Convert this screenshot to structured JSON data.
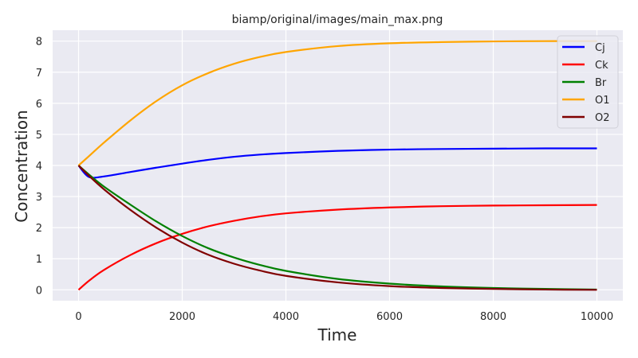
{
  "chart_data": {
    "type": "line",
    "title": "biamp/original/images/main_max.png",
    "xlabel": "Time",
    "ylabel": "Concentration",
    "xlim": [
      -500,
      10500
    ],
    "ylim": [
      -0.35,
      8.35
    ],
    "grid": true,
    "legend_position": "top-right",
    "x_ticks": [
      "0",
      "2000",
      "4000",
      "6000",
      "8000",
      "10000"
    ],
    "y_ticks": [
      "0",
      "1",
      "2",
      "3",
      "4",
      "5",
      "6",
      "7",
      "8"
    ],
    "x": [
      0,
      200,
      500,
      1000,
      1500,
      2000,
      2500,
      3000,
      3500,
      4000,
      5000,
      6000,
      7000,
      8000,
      9000,
      10000
    ],
    "series": [
      {
        "name": "Cj",
        "color": "#0000ff",
        "values": [
          4.0,
          3.63,
          3.65,
          3.79,
          3.93,
          4.06,
          4.18,
          4.28,
          4.35,
          4.4,
          4.47,
          4.51,
          4.53,
          4.54,
          4.55,
          4.55
        ]
      },
      {
        "name": "Ck",
        "color": "#ff0000",
        "values": [
          0.0,
          0.29,
          0.65,
          1.12,
          1.5,
          1.8,
          2.04,
          2.22,
          2.36,
          2.46,
          2.58,
          2.65,
          2.69,
          2.71,
          2.72,
          2.73
        ]
      },
      {
        "name": "Br",
        "color": "#008000",
        "values": [
          4.0,
          3.71,
          3.31,
          2.74,
          2.2,
          1.73,
          1.34,
          1.04,
          0.8,
          0.61,
          0.35,
          0.2,
          0.11,
          0.06,
          0.03,
          0.01
        ]
      },
      {
        "name": "O1",
        "color": "#ffa500",
        "values": [
          4.0,
          4.3,
          4.75,
          5.45,
          6.07,
          6.58,
          6.97,
          7.27,
          7.49,
          7.65,
          7.84,
          7.93,
          7.97,
          7.99,
          8.0,
          8.0
        ]
      },
      {
        "name": "O2",
        "color": "#800000",
        "values": [
          4.0,
          3.67,
          3.22,
          2.57,
          2.0,
          1.52,
          1.13,
          0.84,
          0.62,
          0.45,
          0.24,
          0.12,
          0.06,
          0.03,
          0.01,
          0.0
        ]
      }
    ]
  }
}
